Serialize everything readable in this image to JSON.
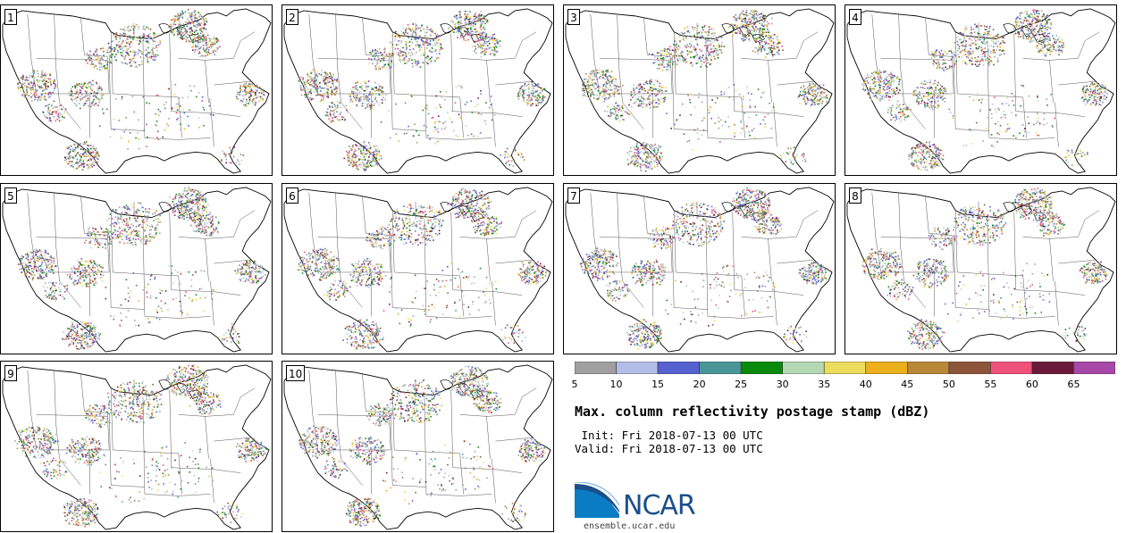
{
  "panels": [
    {
      "label": "1"
    },
    {
      "label": "2"
    },
    {
      "label": "3"
    },
    {
      "label": "4"
    },
    {
      "label": "5"
    },
    {
      "label": "6"
    },
    {
      "label": "7"
    },
    {
      "label": "8"
    },
    {
      "label": "9"
    },
    {
      "label": "10"
    }
  ],
  "colorbar": {
    "bins": [
      {
        "from": 5,
        "color": "#a0a0a0"
      },
      {
        "from": 10,
        "color": "#b4bde8"
      },
      {
        "from": 15,
        "color": "#5660d0"
      },
      {
        "from": 20,
        "color": "#4a9696"
      },
      {
        "from": 25,
        "color": "#0a8a0a"
      },
      {
        "from": 30,
        "color": "#b4d8b4"
      },
      {
        "from": 35,
        "color": "#ecdc5c"
      },
      {
        "from": 40,
        "color": "#ecb01c"
      },
      {
        "from": 45,
        "color": "#b88838"
      },
      {
        "from": 50,
        "color": "#8c5438"
      },
      {
        "from": 55,
        "color": "#f0507c"
      },
      {
        "from": 60,
        "color": "#6a1a38"
      },
      {
        "from": 65,
        "color": "#a848a8"
      }
    ],
    "tick_labels": [
      "5",
      "10",
      "15",
      "20",
      "25",
      "30",
      "35",
      "40",
      "45",
      "50",
      "55",
      "60",
      "65"
    ]
  },
  "title": "Max. column reflectivity postage stamp (dBZ)",
  "init_line": " Init: Fri 2018-07-13 00 UTC",
  "valid_line": "Valid: Fri 2018-07-13 00 UTC",
  "logo": {
    "text": "NCAR",
    "url": "ensemble.ucar.edu",
    "brand_color": "#1b4f8a",
    "accent_color": "#0a7cc4"
  }
}
